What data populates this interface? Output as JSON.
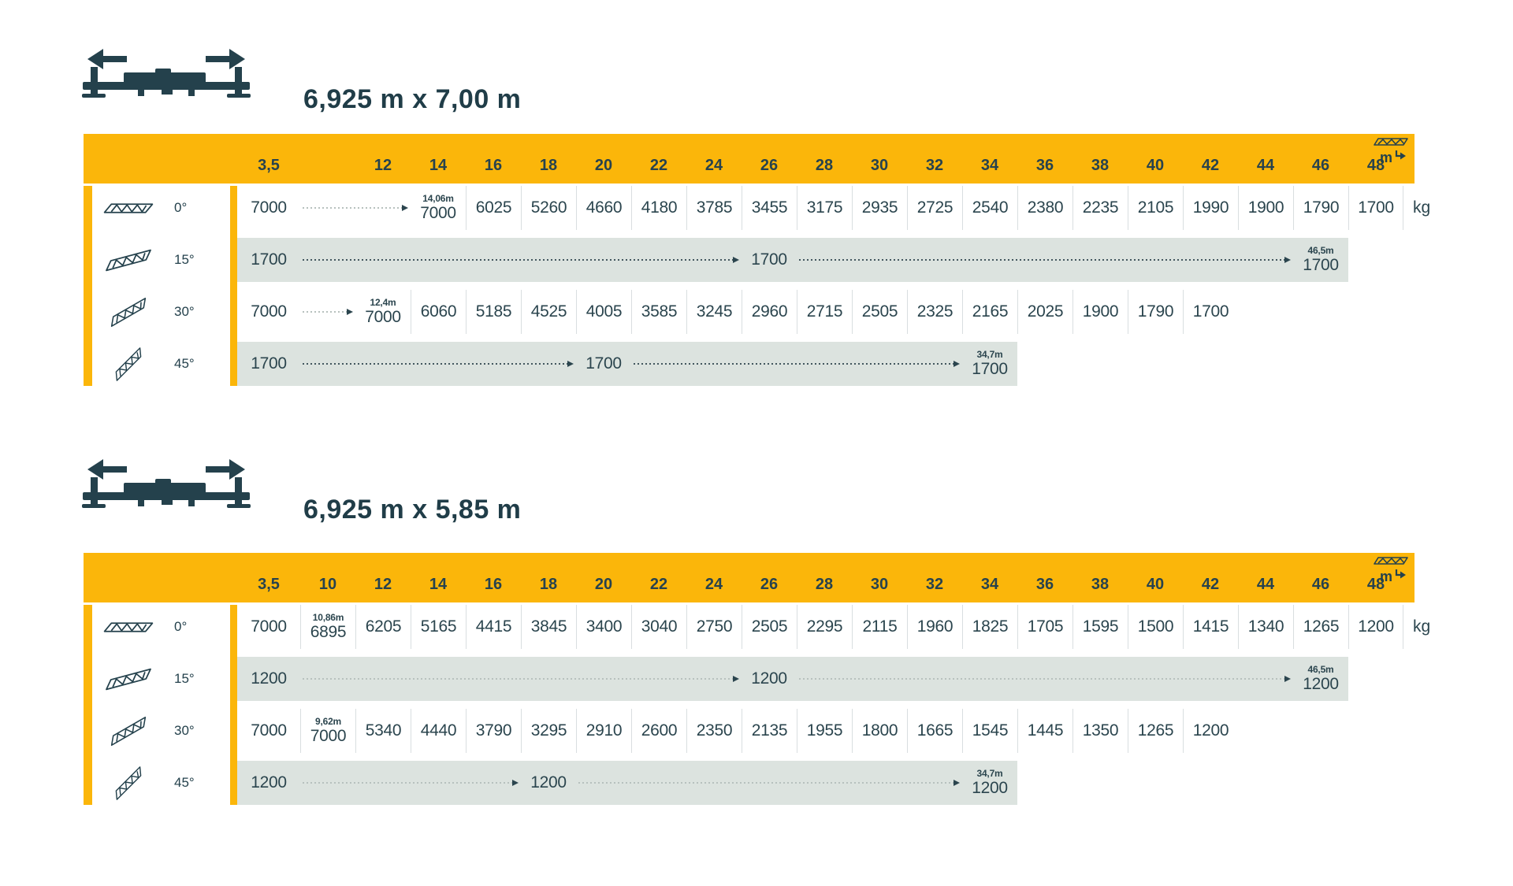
{
  "header_unit": "m",
  "load_unit": "kg",
  "colors": {
    "accent_yellow": "#FBB60A",
    "ink": "#24414C",
    "band_gray": "#DCE3DF"
  },
  "columns": [
    "3,5",
    "10",
    "12",
    "14",
    "16",
    "18",
    "20",
    "22",
    "24",
    "26",
    "28",
    "30",
    "32",
    "34",
    "36",
    "38",
    "40",
    "42",
    "44",
    "46",
    "48"
  ],
  "tables": [
    {
      "title": "6,925 m x 7,00 m",
      "header": [
        {
          "col": 0,
          "label": "3,5"
        },
        {
          "col": 2,
          "label": "12"
        },
        {
          "col": 3,
          "label": "14"
        },
        {
          "col": 4,
          "label": "16"
        },
        {
          "col": 5,
          "label": "18"
        },
        {
          "col": 6,
          "label": "20"
        },
        {
          "col": 7,
          "label": "22"
        },
        {
          "col": 8,
          "label": "24"
        },
        {
          "col": 9,
          "label": "26"
        },
        {
          "col": 10,
          "label": "28"
        },
        {
          "col": 11,
          "label": "30"
        },
        {
          "col": 12,
          "label": "32"
        },
        {
          "col": 13,
          "label": "34"
        },
        {
          "col": 14,
          "label": "36"
        },
        {
          "col": 15,
          "label": "38"
        },
        {
          "col": 16,
          "label": "40"
        },
        {
          "col": 17,
          "label": "42"
        },
        {
          "col": 18,
          "label": "44"
        },
        {
          "col": 19,
          "label": "46"
        },
        {
          "col": 20,
          "label": "48"
        }
      ],
      "rows": [
        {
          "angle": "0°",
          "kind": "cells",
          "kg": true,
          "items": [
            {
              "col": 0,
              "value": "7000"
            },
            {
              "arrow": true,
              "from": 1,
              "to": 2,
              "style": "light"
            },
            {
              "col": 3,
              "value": "7000",
              "note": "14,06m"
            },
            {
              "col": 4,
              "value": "6025"
            },
            {
              "col": 5,
              "value": "5260"
            },
            {
              "col": 6,
              "value": "4660"
            },
            {
              "col": 7,
              "value": "4180"
            },
            {
              "col": 8,
              "value": "3785"
            },
            {
              "col": 9,
              "value": "3455"
            },
            {
              "col": 10,
              "value": "3175"
            },
            {
              "col": 11,
              "value": "2935"
            },
            {
              "col": 12,
              "value": "2725"
            },
            {
              "col": 13,
              "value": "2540"
            },
            {
              "col": 14,
              "value": "2380"
            },
            {
              "col": 15,
              "value": "2235"
            },
            {
              "col": 16,
              "value": "2105"
            },
            {
              "col": 17,
              "value": "1990"
            },
            {
              "col": 18,
              "value": "1900"
            },
            {
              "col": 19,
              "value": "1790"
            },
            {
              "col": 20,
              "value": "1700"
            }
          ]
        },
        {
          "angle": "15°",
          "kind": "band",
          "band_end": 19,
          "items": [
            {
              "col": 0,
              "value": "1700"
            },
            {
              "arrow": true,
              "from": 1,
              "to": 8,
              "style": "dark"
            },
            {
              "col": 9,
              "value": "1700"
            },
            {
              "arrow": true,
              "from": 10,
              "to": 18,
              "style": "dark"
            },
            {
              "col": 19,
              "value": "1700",
              "note": "46,5m"
            }
          ]
        },
        {
          "angle": "30°",
          "kind": "cells",
          "kg": false,
          "items": [
            {
              "col": 0,
              "value": "7000"
            },
            {
              "arrow": true,
              "from": 1,
              "to": 1,
              "style": "light"
            },
            {
              "col": 2,
              "value": "7000",
              "note": "12,4m"
            },
            {
              "col": 3,
              "value": "6060"
            },
            {
              "col": 4,
              "value": "5185"
            },
            {
              "col": 5,
              "value": "4525"
            },
            {
              "col": 6,
              "value": "4005"
            },
            {
              "col": 7,
              "value": "3585"
            },
            {
              "col": 8,
              "value": "3245"
            },
            {
              "col": 9,
              "value": "2960"
            },
            {
              "col": 10,
              "value": "2715"
            },
            {
              "col": 11,
              "value": "2505"
            },
            {
              "col": 12,
              "value": "2325"
            },
            {
              "col": 13,
              "value": "2165"
            },
            {
              "col": 14,
              "value": "2025"
            },
            {
              "col": 15,
              "value": "1900"
            },
            {
              "col": 16,
              "value": "1790"
            },
            {
              "col": 17,
              "value": "1700"
            }
          ]
        },
        {
          "angle": "45°",
          "kind": "band",
          "band_end": 13,
          "items": [
            {
              "col": 0,
              "value": "1700"
            },
            {
              "arrow": true,
              "from": 1,
              "to": 5,
              "style": "dark"
            },
            {
              "col": 6,
              "value": "1700"
            },
            {
              "arrow": true,
              "from": 7,
              "to": 12,
              "style": "dark"
            },
            {
              "col": 13,
              "value": "1700",
              "note": "34,7m"
            }
          ]
        }
      ]
    },
    {
      "title": "6,925 m x 5,85 m",
      "header": [
        {
          "col": 0,
          "label": "3,5"
        },
        {
          "col": 1,
          "label": "10"
        },
        {
          "col": 2,
          "label": "12"
        },
        {
          "col": 3,
          "label": "14"
        },
        {
          "col": 4,
          "label": "16"
        },
        {
          "col": 5,
          "label": "18"
        },
        {
          "col": 6,
          "label": "20"
        },
        {
          "col": 7,
          "label": "22"
        },
        {
          "col": 8,
          "label": "24"
        },
        {
          "col": 9,
          "label": "26"
        },
        {
          "col": 10,
          "label": "28"
        },
        {
          "col": 11,
          "label": "30"
        },
        {
          "col": 12,
          "label": "32"
        },
        {
          "col": 13,
          "label": "34"
        },
        {
          "col": 14,
          "label": "36"
        },
        {
          "col": 15,
          "label": "38"
        },
        {
          "col": 16,
          "label": "40"
        },
        {
          "col": 17,
          "label": "42"
        },
        {
          "col": 18,
          "label": "44"
        },
        {
          "col": 19,
          "label": "46"
        },
        {
          "col": 20,
          "label": "48"
        }
      ],
      "rows": [
        {
          "angle": "0°",
          "kind": "cells",
          "kg": true,
          "items": [
            {
              "col": 0,
              "value": "7000"
            },
            {
              "col": 1,
              "value": "6895",
              "note": "10,86m"
            },
            {
              "col": 2,
              "value": "6205"
            },
            {
              "col": 3,
              "value": "5165"
            },
            {
              "col": 4,
              "value": "4415"
            },
            {
              "col": 5,
              "value": "3845"
            },
            {
              "col": 6,
              "value": "3400"
            },
            {
              "col": 7,
              "value": "3040"
            },
            {
              "col": 8,
              "value": "2750"
            },
            {
              "col": 9,
              "value": "2505"
            },
            {
              "col": 10,
              "value": "2295"
            },
            {
              "col": 11,
              "value": "2115"
            },
            {
              "col": 12,
              "value": "1960"
            },
            {
              "col": 13,
              "value": "1825"
            },
            {
              "col": 14,
              "value": "1705"
            },
            {
              "col": 15,
              "value": "1595"
            },
            {
              "col": 16,
              "value": "1500"
            },
            {
              "col": 17,
              "value": "1415"
            },
            {
              "col": 18,
              "value": "1340"
            },
            {
              "col": 19,
              "value": "1265"
            },
            {
              "col": 20,
              "value": "1200"
            }
          ]
        },
        {
          "angle": "15°",
          "kind": "band",
          "band_end": 19,
          "items": [
            {
              "col": 0,
              "value": "1200"
            },
            {
              "arrow": true,
              "from": 1,
              "to": 8,
              "style": "light"
            },
            {
              "col": 9,
              "value": "1200"
            },
            {
              "arrow": true,
              "from": 10,
              "to": 18,
              "style": "light"
            },
            {
              "col": 19,
              "value": "1200",
              "note": "46,5m"
            }
          ]
        },
        {
          "angle": "30°",
          "kind": "cells",
          "kg": false,
          "items": [
            {
              "col": 0,
              "value": "7000"
            },
            {
              "col": 1,
              "value": "7000",
              "note": "9,62m"
            },
            {
              "col": 2,
              "value": "5340"
            },
            {
              "col": 3,
              "value": "4440"
            },
            {
              "col": 4,
              "value": "3790"
            },
            {
              "col": 5,
              "value": "3295"
            },
            {
              "col": 6,
              "value": "2910"
            },
            {
              "col": 7,
              "value": "2600"
            },
            {
              "col": 8,
              "value": "2350"
            },
            {
              "col": 9,
              "value": "2135"
            },
            {
              "col": 10,
              "value": "1955"
            },
            {
              "col": 11,
              "value": "1800"
            },
            {
              "col": 12,
              "value": "1665"
            },
            {
              "col": 13,
              "value": "1545"
            },
            {
              "col": 14,
              "value": "1445"
            },
            {
              "col": 15,
              "value": "1350"
            },
            {
              "col": 16,
              "value": "1265"
            },
            {
              "col": 17,
              "value": "1200"
            }
          ]
        },
        {
          "angle": "45°",
          "kind": "band",
          "band_end": 13,
          "items": [
            {
              "col": 0,
              "value": "1200"
            },
            {
              "arrow": true,
              "from": 1,
              "to": 4,
              "style": "light"
            },
            {
              "col": 5,
              "value": "1200"
            },
            {
              "arrow": true,
              "from": 6,
              "to": 12,
              "style": "light"
            },
            {
              "col": 13,
              "value": "1200",
              "note": "34,7m"
            }
          ]
        }
      ]
    }
  ]
}
